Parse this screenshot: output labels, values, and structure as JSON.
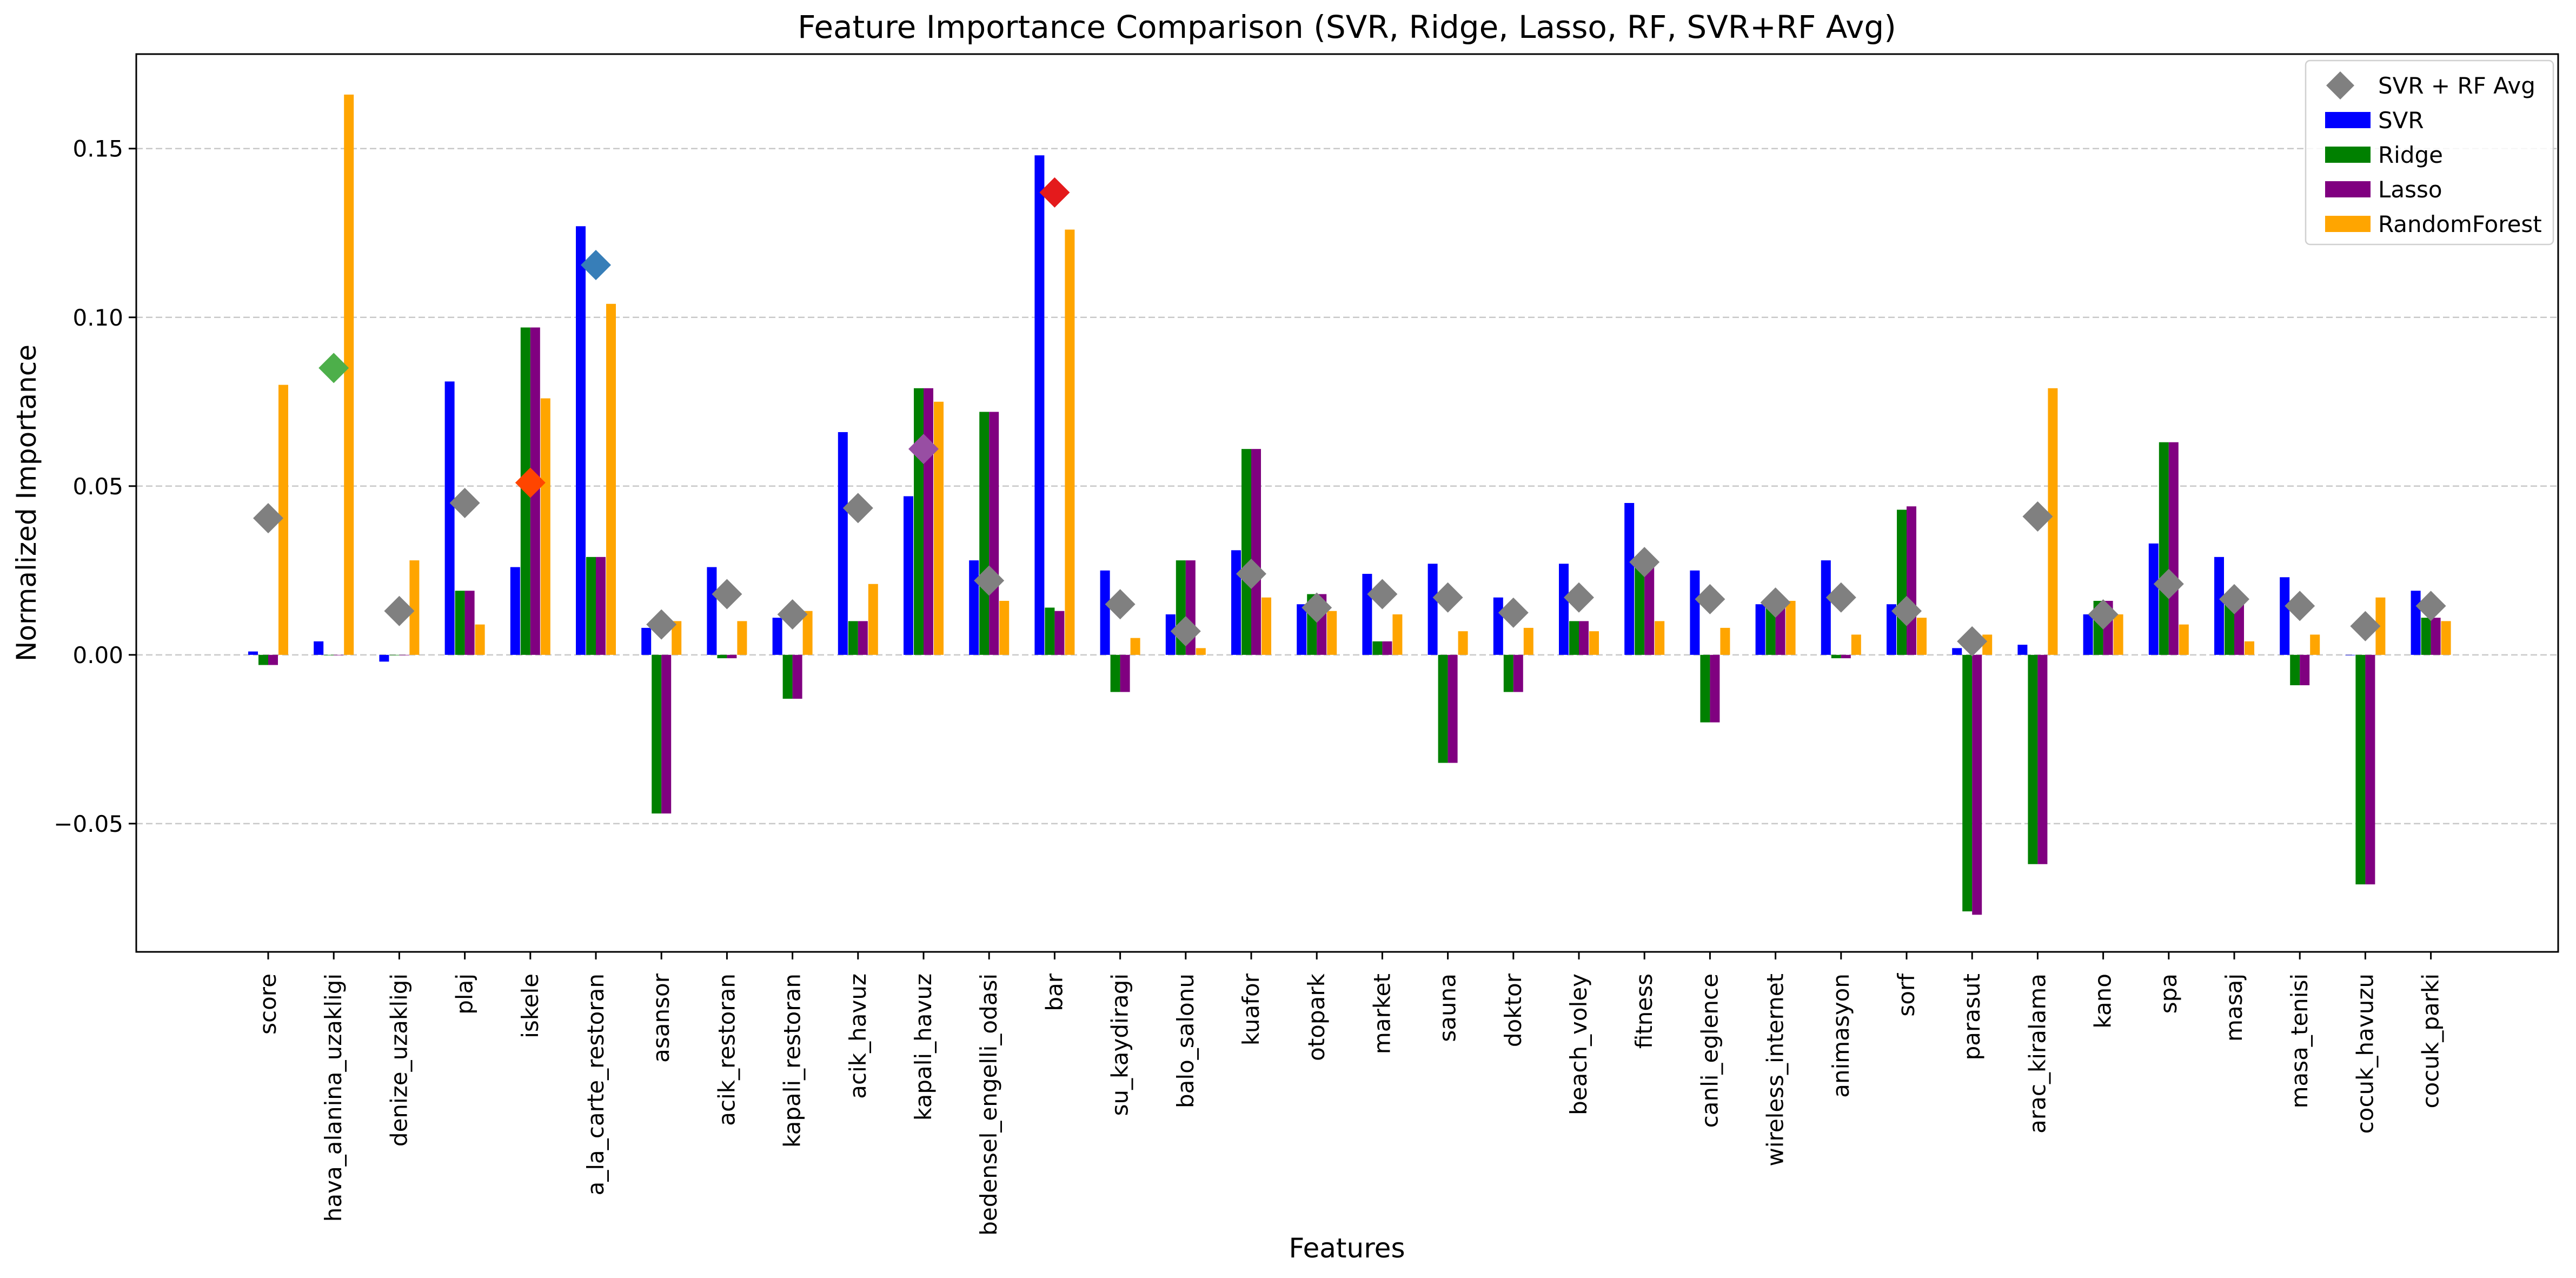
{
  "chart_data": {
    "type": "bar",
    "title": "Feature Importance Comparison (SVR, Ridge, Lasso, RF, SVR+RF Avg)",
    "xlabel": "Features",
    "ylabel": "Normalized Importance",
    "ylim": [
      -0.088,
      0.178
    ],
    "yticks": [
      -0.05,
      0.0,
      0.05,
      0.1,
      0.15
    ],
    "ytick_labels": [
      "−0.05",
      "0.00",
      "0.05",
      "0.10",
      "0.15"
    ],
    "grid": "horizontal dashed",
    "legend_position": "top-right",
    "categories": [
      "score",
      "hava_alanina_uzakligi",
      "denize_uzakligi",
      "plaj",
      "iskele",
      "a_la_carte_restoran",
      "asansor",
      "acik_restoran",
      "kapali_restoran",
      "acik_havuz",
      "kapali_havuz",
      "bedensel_engelli_odasi",
      "bar",
      "su_kaydiragi",
      "balo_salonu",
      "kuafor",
      "otopark",
      "market",
      "sauna",
      "doktor",
      "beach_voley",
      "fitness",
      "canli_eglence",
      "wireless_internet",
      "animasyon",
      "sorf",
      "parasut",
      "arac_kiralama",
      "kano",
      "spa",
      "masaj",
      "masa_tenisi",
      "cocuk_havuzu",
      "cocuk_parki"
    ],
    "series": [
      {
        "name": "SVR",
        "color": "#0000ff",
        "values": [
          0.001,
          0.004,
          -0.002,
          0.081,
          0.026,
          0.127,
          0.008,
          0.026,
          0.011,
          0.066,
          0.047,
          0.028,
          0.148,
          0.025,
          0.012,
          0.031,
          0.015,
          0.024,
          0.027,
          0.017,
          0.027,
          0.045,
          0.025,
          0.015,
          0.028,
          0.015,
          0.002,
          0.003,
          0.012,
          0.033,
          0.029,
          0.023,
          0.0,
          0.019
        ]
      },
      {
        "name": "Ridge",
        "color": "#008000",
        "values": [
          -0.003,
          0.0,
          0.0,
          0.019,
          0.097,
          0.029,
          -0.047,
          -0.001,
          -0.013,
          0.01,
          0.079,
          0.072,
          0.014,
          -0.011,
          0.028,
          0.061,
          0.018,
          0.004,
          -0.032,
          -0.011,
          0.01,
          0.026,
          -0.02,
          0.015,
          -0.001,
          0.043,
          -0.076,
          -0.062,
          0.016,
          0.063,
          0.018,
          -0.009,
          -0.068,
          0.011
        ]
      },
      {
        "name": "Lasso",
        "color": "#800080",
        "values": [
          -0.003,
          0.0,
          0.0,
          0.019,
          0.097,
          0.029,
          -0.047,
          -0.001,
          -0.013,
          0.01,
          0.079,
          0.072,
          0.013,
          -0.011,
          0.028,
          0.061,
          0.018,
          0.004,
          -0.032,
          -0.011,
          0.01,
          0.026,
          -0.02,
          0.015,
          -0.001,
          0.044,
          -0.077,
          -0.062,
          0.016,
          0.063,
          0.018,
          -0.009,
          -0.068,
          0.011
        ]
      },
      {
        "name": "RandomForest",
        "color": "#ffa500",
        "values": [
          0.08,
          0.166,
          0.028,
          0.009,
          0.076,
          0.104,
          0.01,
          0.01,
          0.013,
          0.021,
          0.075,
          0.016,
          0.126,
          0.005,
          0.002,
          0.017,
          0.013,
          0.012,
          0.007,
          0.008,
          0.007,
          0.01,
          0.008,
          0.016,
          0.006,
          0.011,
          0.006,
          0.079,
          0.012,
          0.009,
          0.004,
          0.006,
          0.017,
          0.01
        ]
      }
    ],
    "avg_series": {
      "name": "SVR + RF Avg",
      "marker": "diamond",
      "default_color": "#808080",
      "values": [
        0.0405,
        0.085,
        0.013,
        0.045,
        0.051,
        0.1155,
        0.009,
        0.018,
        0.012,
        0.0435,
        0.061,
        0.022,
        0.137,
        0.015,
        0.007,
        0.024,
        0.014,
        0.018,
        0.017,
        0.0125,
        0.017,
        0.0275,
        0.0165,
        0.0155,
        0.017,
        0.013,
        0.004,
        0.041,
        0.012,
        0.021,
        0.0165,
        0.0145,
        0.0085,
        0.0145
      ],
      "highlight_colors": {
        "hava_alanina_uzakligi": "#4daf4a",
        "iskele": "#ff4500",
        "a_la_carte_restoran": "#377eb8",
        "kapali_havuz": "#984ea3",
        "bar": "#e41a1c"
      }
    }
  }
}
